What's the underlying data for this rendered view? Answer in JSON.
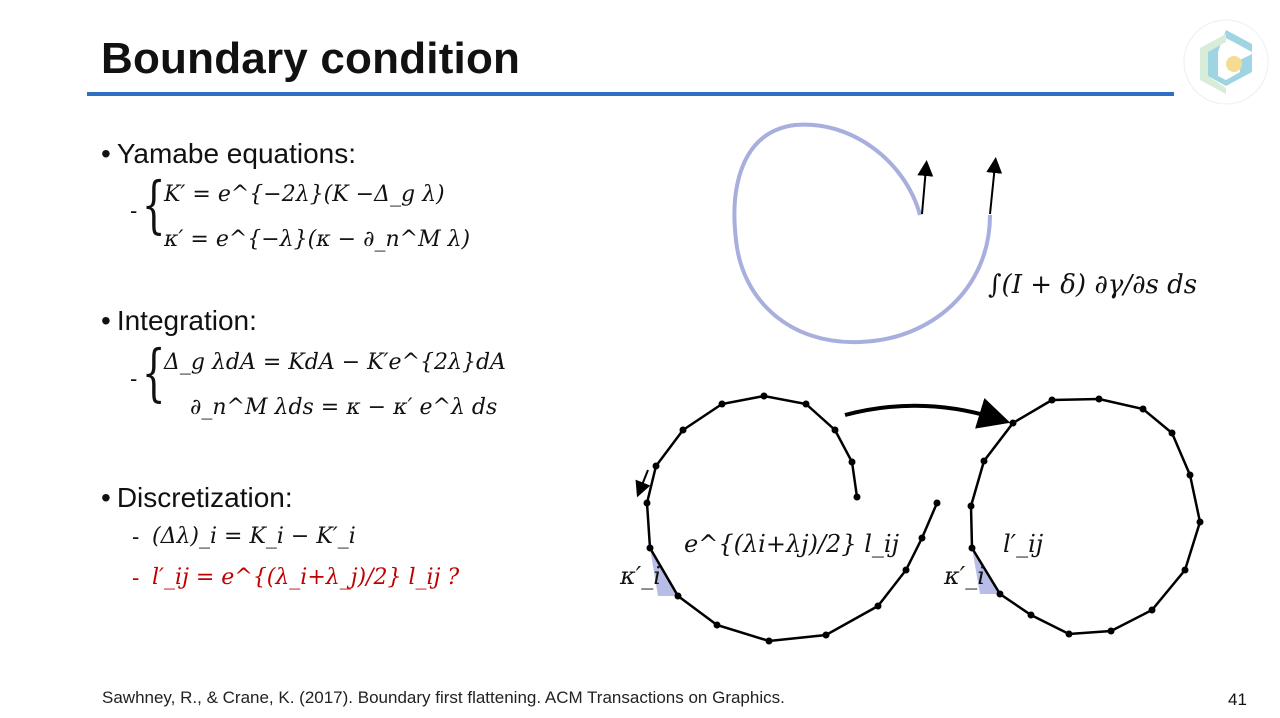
{
  "slide": {
    "title": "Boundary condition",
    "page_number": "41",
    "citation": "Sawhney, R., & Crane, K. (2017). Boundary first flattening. ACM Transactions on Graphics.",
    "accent_color": "#2e6fc1",
    "highlight_color": "#c00000"
  },
  "sections": [
    {
      "heading": "Yamabe equations:",
      "lines": [
        "K′ = e^{−2λ}(K −Δ_g λ)",
        "κ′ = e^{−λ}(κ − ∂_n^M λ)"
      ]
    },
    {
      "heading": "Integration:",
      "lines": [
        "Δ_g λdA = KdA − K′e^{2λ}dA",
        "∂_n^M λds = κ − κ′ e^λ ds"
      ]
    },
    {
      "heading": "Discretization:",
      "lines": [
        "(Δλ)_i = K_i − K′_i",
        "l′_ij = e^{(λ_i+λ_j)/2} l_ij ?"
      ]
    }
  ],
  "figure": {
    "integral": "∫(I + δ) ∂γ/∂s ds",
    "edge_label_left": "e^{(λi+λj)/2} l_ij",
    "edge_label_right": "l′_ij",
    "angle_label": "κ′_i"
  }
}
